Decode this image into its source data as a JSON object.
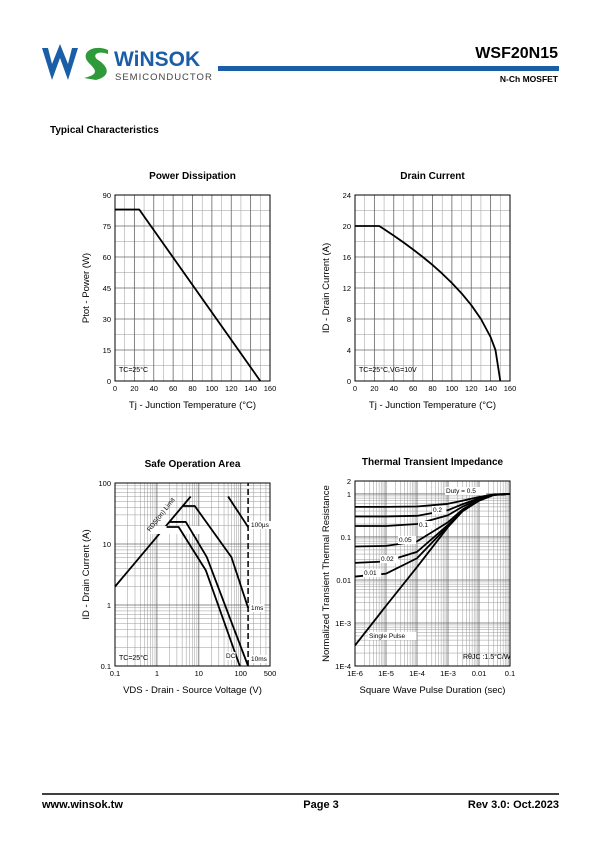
{
  "header": {
    "brand": "WiNSOK",
    "subtitle": "SEMICONDUCTOR",
    "part": "WSF20N15",
    "device": "N-Ch MOSFET"
  },
  "section": "Typical Characteristics",
  "chart_data": [
    {
      "type": "line",
      "title": "Power Dissipation",
      "xlabel": "Tj - Junction Temperature (°C)",
      "ylabel": "Ptot - Power (W)",
      "xlim": [
        0,
        160
      ],
      "xticks": [
        0,
        20,
        40,
        60,
        80,
        100,
        120,
        140,
        160
      ],
      "ylim": [
        0,
        90
      ],
      "yticks": [
        0,
        15,
        30,
        45,
        60,
        75,
        90
      ],
      "grid": true,
      "annotations": [
        "TC=25°C"
      ],
      "x": [
        0,
        25,
        150
      ],
      "series": [
        {
          "color": "#000000",
          "values": [
            83,
            83,
            0
          ]
        }
      ]
    },
    {
      "type": "line",
      "title": "Drain Current",
      "xlabel": "Tj - Junction Temperature (°C)",
      "ylabel": "ID - Drain Current (A)",
      "xlim": [
        0,
        160
      ],
      "xticks": [
        0,
        20,
        40,
        60,
        80,
        100,
        120,
        140,
        160
      ],
      "ylim": [
        0,
        24
      ],
      "yticks": [
        0,
        4,
        8,
        12,
        16,
        20,
        24
      ],
      "grid": true,
      "annotations": [
        "TC=25°C,VG=10V"
      ],
      "x": [
        0,
        25,
        30,
        40,
        50,
        60,
        70,
        80,
        90,
        100,
        110,
        120,
        130,
        140,
        145,
        150
      ],
      "series": [
        {
          "color": "#000000",
          "values": [
            20,
            20,
            19.6,
            18.76,
            17.89,
            16.97,
            16.0,
            14.97,
            13.86,
            12.65,
            11.31,
            9.8,
            8.0,
            5.66,
            4.0,
            0
          ]
        }
      ]
    },
    {
      "type": "line",
      "title": "Safe Operation Area",
      "xlabel": "VDS - Drain - Source Voltage (V)",
      "ylabel": "ID - Drain Current (A)",
      "xlog": true,
      "ylog": true,
      "xlim": [
        0.1,
        500
      ],
      "xticks": [
        0.1,
        1,
        10,
        100,
        500
      ],
      "ylim": [
        0.1,
        100
      ],
      "yticks": [
        0.1,
        1,
        10,
        100
      ],
      "grid": true,
      "annotations": [
        "TC=25°C"
      ],
      "series": [
        {
          "name": "RDS(on) Limit",
          "color": "#000000",
          "x": [
            0.1,
            6.4
          ],
          "values": [
            2,
            60
          ]
        },
        {
          "name": "100µs",
          "color": "#000000",
          "x": [
            50,
            150
          ],
          "values": [
            60,
            19
          ]
        },
        {
          "name": "1ms",
          "color": "#000000",
          "x": [
            4,
            8,
            60,
            150
          ],
          "values": [
            42,
            42,
            6.1,
            0.9
          ]
        },
        {
          "name": "10ms",
          "color": "#000000",
          "x": [
            2,
            4.9,
            15.5,
            150
          ],
          "values": [
            23,
            23,
            6.1,
            0.1
          ]
        },
        {
          "name": "DC",
          "color": "#000000",
          "x": [
            1.7,
            3.3,
            14.7,
            95
          ],
          "values": [
            19,
            19,
            3.7,
            0.1
          ]
        },
        {
          "color": "#000000",
          "dash": true,
          "x": [
            150,
            150
          ],
          "values": [
            0.1,
            100
          ]
        }
      ]
    },
    {
      "type": "line",
      "title": "Thermal Transient Impedance",
      "xlabel": "Square Wave Pulse Duration (sec)",
      "ylabel": "Normalized Transient Thermal Resistance",
      "xlog": true,
      "ylog": true,
      "xlim": [
        1e-06,
        0.1
      ],
      "xticks": [
        {
          "value": 1e-06,
          "label": "1E-6"
        },
        {
          "value": 1e-05,
          "label": "1E-5"
        },
        {
          "value": 0.0001,
          "label": "1E-4"
        },
        {
          "value": 0.001,
          "label": "1E-3"
        },
        0.01,
        0.1
      ],
      "ylim": [
        0.0001,
        2
      ],
      "yticks": [
        {
          "value": 0.0001,
          "label": "1E-4"
        },
        {
          "value": 0.001,
          "label": "1E-3"
        },
        0.01,
        0.1,
        1,
        2
      ],
      "grid": true,
      "annotations": [
        "RθJC :1.5°C/W"
      ],
      "x": [
        1e-06,
        1e-05,
        0.0001,
        0.001,
        0.003,
        0.01,
        0.03,
        0.1
      ],
      "series": [
        {
          "name": "Duty = 0.5",
          "color": "#000000",
          "values": [
            0.5,
            0.5,
            0.51,
            0.59,
            0.7,
            0.85,
            0.98,
            1.0
          ]
        },
        {
          "name": "0.2",
          "color": "#000000",
          "values": [
            0.3,
            0.3,
            0.31,
            0.42,
            0.58,
            0.79,
            0.97,
            1.0
          ]
        },
        {
          "name": "0.1",
          "color": "#000000",
          "values": [
            0.18,
            0.18,
            0.2,
            0.32,
            0.51,
            0.75,
            0.96,
            1.0
          ]
        },
        {
          "name": "0.05",
          "color": "#000000",
          "values": [
            0.06,
            0.062,
            0.079,
            0.22,
            0.44,
            0.72,
            0.95,
            1.0
          ]
        },
        {
          "name": "0.02",
          "color": "#000000",
          "values": [
            0.025,
            0.027,
            0.045,
            0.19,
            0.41,
            0.71,
            0.95,
            1.0
          ]
        },
        {
          "name": "0.01",
          "color": "#000000",
          "values": [
            0.012,
            0.014,
            0.032,
            0.18,
            0.41,
            0.7,
            0.95,
            1.0
          ]
        },
        {
          "name": "Single Pulse",
          "color": "#000000",
          "values": [
            0.0003,
            0.0025,
            0.02,
            0.17,
            0.4,
            0.7,
            0.95,
            1.0
          ]
        }
      ]
    }
  ],
  "footer": {
    "website": "www.winsok.tw",
    "page": "Page 3",
    "revision": "Rev 3.0: Oct.2023"
  }
}
